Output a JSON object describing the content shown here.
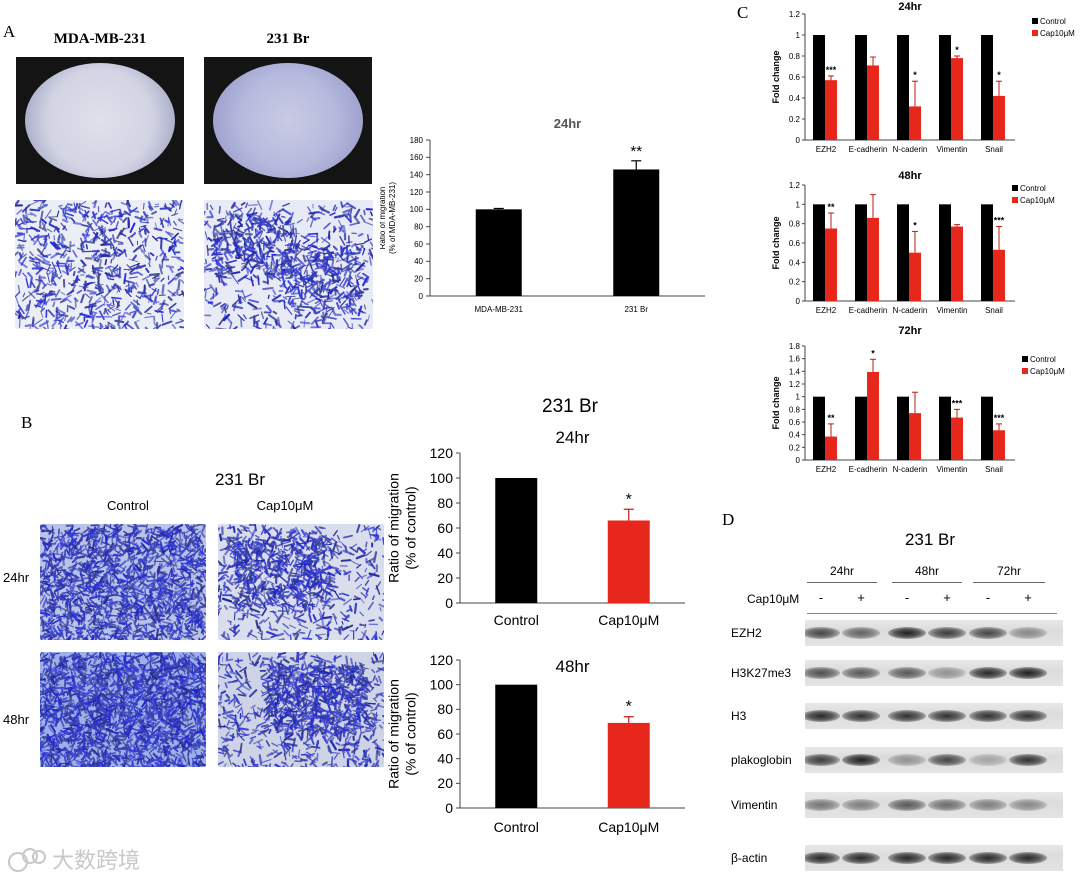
{
  "panels": {
    "a": "A",
    "b": "B",
    "c": "C",
    "d": "D"
  },
  "panel_a": {
    "col1": "MDA-MB-231",
    "col2": "231 Br"
  },
  "panel_b": {
    "title": "231 Br",
    "col1": "Control",
    "col2": "Cap10μM",
    "row1": "24hr",
    "row2": "48hr",
    "chart_group_title": "231 Br"
  },
  "panel_d": {
    "title": "231 Br",
    "timepoints": [
      "24hr",
      "48hr",
      "72hr"
    ],
    "treatment_label": "Cap10μM",
    "signs": [
      "-",
      "+",
      "-",
      "+",
      "-",
      "+"
    ],
    "proteins": [
      "EZH2",
      "H3K27me3",
      "H3",
      "plakoglobin",
      "Vimentin",
      "β-actin"
    ],
    "band_intensity": [
      [
        0.8,
        0.65,
        1.0,
        0.85,
        0.8,
        0.45
      ],
      [
        0.75,
        0.7,
        0.7,
        0.4,
        0.95,
        1.0
      ],
      [
        0.95,
        0.9,
        0.9,
        0.9,
        0.9,
        0.9
      ],
      [
        0.85,
        1.0,
        0.4,
        0.8,
        0.3,
        0.9
      ],
      [
        0.55,
        0.5,
        0.7,
        0.6,
        0.5,
        0.45
      ],
      [
        0.95,
        0.95,
        0.95,
        0.95,
        0.95,
        0.95
      ]
    ]
  },
  "watermark": "大数跨境",
  "colors": {
    "black": "#000000",
    "red": "#e8271c",
    "ruler": "#888888"
  },
  "chart_data": [
    {
      "id": "a",
      "type": "bar",
      "title": "24hr",
      "ylabel_lines": [
        "Ratio of migration",
        "(% of MDA-MB-231)"
      ],
      "categories": [
        "MDA-MB-231",
        "231 Br"
      ],
      "values": [
        100,
        146
      ],
      "errors": [
        1,
        10
      ],
      "significance": [
        "",
        "**"
      ],
      "colors": [
        "#000000",
        "#000000"
      ],
      "ylim": [
        0,
        180
      ],
      "yticks": [
        0,
        20,
        40,
        60,
        80,
        100,
        120,
        140,
        160,
        180
      ]
    },
    {
      "id": "b24",
      "type": "bar",
      "title": "24hr",
      "ylabel_lines": [
        "Ratio of  migration",
        "(% of control)"
      ],
      "categories": [
        "Control",
        "Cap10μM"
      ],
      "values": [
        100,
        66
      ],
      "errors": [
        0,
        9
      ],
      "significance": [
        "",
        "*"
      ],
      "colors": [
        "#000000",
        "#e8271c"
      ],
      "ylim": [
        0,
        120
      ],
      "yticks": [
        0,
        20,
        40,
        60,
        80,
        100,
        120
      ]
    },
    {
      "id": "b48",
      "type": "bar",
      "title": "48hr",
      "ylabel_lines": [
        "Ratio of  migration",
        "(% of control)"
      ],
      "categories": [
        "Control",
        "Cap10μM"
      ],
      "values": [
        100,
        69
      ],
      "errors": [
        0,
        5
      ],
      "significance": [
        "",
        "*"
      ],
      "colors": [
        "#000000",
        "#e8271c"
      ],
      "ylim": [
        0,
        120
      ],
      "yticks": [
        0,
        20,
        40,
        60,
        80,
        100,
        120
      ]
    },
    {
      "id": "c24",
      "type": "bar",
      "title": "24hr",
      "ylabel": "Fold change",
      "categories": [
        "EZH2",
        "E-cadherin",
        "N-caderin",
        "Vimentin",
        "Snail"
      ],
      "legend": [
        "Control",
        "Cap10μM"
      ],
      "series": [
        {
          "name": "Control",
          "values": [
            1,
            1,
            1,
            1,
            1
          ],
          "errors": [
            0,
            0,
            0,
            0,
            0
          ]
        },
        {
          "name": "Cap10μM",
          "values": [
            0.57,
            0.71,
            0.32,
            0.78,
            0.42
          ],
          "errors": [
            0.04,
            0.08,
            0.24,
            0.02,
            0.14
          ]
        }
      ],
      "significance": [
        "***",
        "",
        "*",
        "*",
        "*"
      ],
      "ylim": [
        0,
        1.2
      ],
      "yticks": [
        0,
        0.2,
        0.4,
        0.6,
        0.8,
        1,
        1.2
      ]
    },
    {
      "id": "c48",
      "type": "bar",
      "title": "48hr",
      "ylabel": "Fold change",
      "categories": [
        "EZH2",
        "E-cadherin",
        "N-caderin",
        "Vimentin",
        "Snail"
      ],
      "legend": [
        "Control",
        "Cap10μM"
      ],
      "series": [
        {
          "name": "Control",
          "values": [
            1,
            1,
            1,
            1,
            1
          ],
          "errors": [
            0,
            0,
            0,
            0,
            0
          ]
        },
        {
          "name": "Cap10μM",
          "values": [
            0.75,
            0.86,
            0.5,
            0.77,
            0.53
          ],
          "errors": [
            0.16,
            0.24,
            0.22,
            0.02,
            0.24
          ]
        }
      ],
      "significance": [
        "**",
        "",
        "*",
        "",
        "***"
      ],
      "ylim": [
        0,
        1.2
      ],
      "yticks": [
        0,
        0.2,
        0.4,
        0.6,
        0.8,
        1,
        1.2
      ]
    },
    {
      "id": "c72",
      "type": "bar",
      "title": "72hr",
      "ylabel": "Fold change",
      "categories": [
        "EZH2",
        "E-cadherin",
        "N-caderin",
        "Vimentin",
        "Snail"
      ],
      "legend": [
        "Control",
        "Cap10μM"
      ],
      "series": [
        {
          "name": "Control",
          "values": [
            1,
            1,
            1,
            1,
            1
          ],
          "errors": [
            0,
            0,
            0,
            0,
            0
          ]
        },
        {
          "name": "Cap10μM",
          "values": [
            0.37,
            1.39,
            0.74,
            0.67,
            0.47
          ],
          "errors": [
            0.2,
            0.2,
            0.33,
            0.13,
            0.1
          ]
        }
      ],
      "significance": [
        "**",
        "*",
        "",
        "***",
        "***"
      ],
      "ylim": [
        0,
        1.8
      ],
      "yticks": [
        0,
        0.2,
        0.4,
        0.6,
        0.8,
        1,
        1.2,
        1.4,
        1.6,
        1.8
      ]
    }
  ]
}
